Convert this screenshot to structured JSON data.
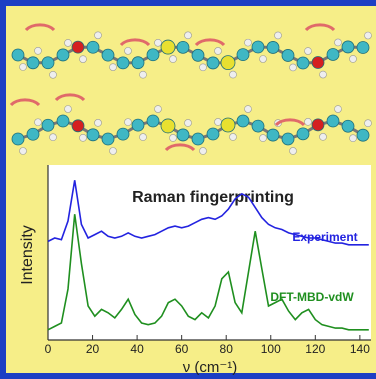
{
  "chart_data": {
    "type": "line",
    "title": "Raman fingerprinting",
    "x_label": "ν (cm⁻¹)",
    "y_label": "Intensity",
    "x": [
      0,
      3,
      6,
      9,
      12,
      15,
      18,
      21,
      24,
      27,
      30,
      33,
      36,
      39,
      42,
      45,
      48,
      51,
      54,
      57,
      60,
      63,
      66,
      69,
      72,
      75,
      78,
      81,
      84,
      87,
      90,
      93,
      96,
      99,
      102,
      105,
      108,
      111,
      114,
      117,
      120,
      123,
      126,
      129,
      132,
      135,
      138,
      141,
      144
    ],
    "series": [
      {
        "name": "Experiment",
        "color": "#2323e0",
        "values": [
          0.58,
          0.6,
          0.59,
          0.7,
          0.94,
          0.68,
          0.6,
          0.62,
          0.64,
          0.61,
          0.6,
          0.61,
          0.63,
          0.61,
          0.6,
          0.61,
          0.62,
          0.64,
          0.66,
          0.67,
          0.66,
          0.67,
          0.69,
          0.71,
          0.72,
          0.71,
          0.73,
          0.77,
          0.83,
          0.86,
          0.84,
          0.78,
          0.72,
          0.68,
          0.66,
          0.65,
          0.63,
          0.62,
          0.61,
          0.6,
          0.6,
          0.59,
          0.58,
          0.57,
          0.57,
          0.56,
          0.56,
          0.56,
          0.56
        ]
      },
      {
        "name": "DFT-MBD-vdW",
        "color": "#1f8f1f",
        "values": [
          0.06,
          0.08,
          0.1,
          0.3,
          0.74,
          0.45,
          0.2,
          0.14,
          0.18,
          0.16,
          0.13,
          0.18,
          0.24,
          0.15,
          0.1,
          0.09,
          0.1,
          0.14,
          0.22,
          0.24,
          0.2,
          0.14,
          0.12,
          0.16,
          0.13,
          0.2,
          0.36,
          0.4,
          0.22,
          0.16,
          0.4,
          0.64,
          0.42,
          0.2,
          0.22,
          0.24,
          0.17,
          0.12,
          0.16,
          0.18,
          0.12,
          0.09,
          0.08,
          0.07,
          0.07,
          0.06,
          0.06,
          0.06,
          0.06
        ]
      }
    ],
    "xlim": [
      0,
      145
    ],
    "xticks": [
      0,
      20,
      40,
      60,
      80,
      100,
      120,
      140
    ],
    "ylim": [
      0,
      1
    ]
  }
}
